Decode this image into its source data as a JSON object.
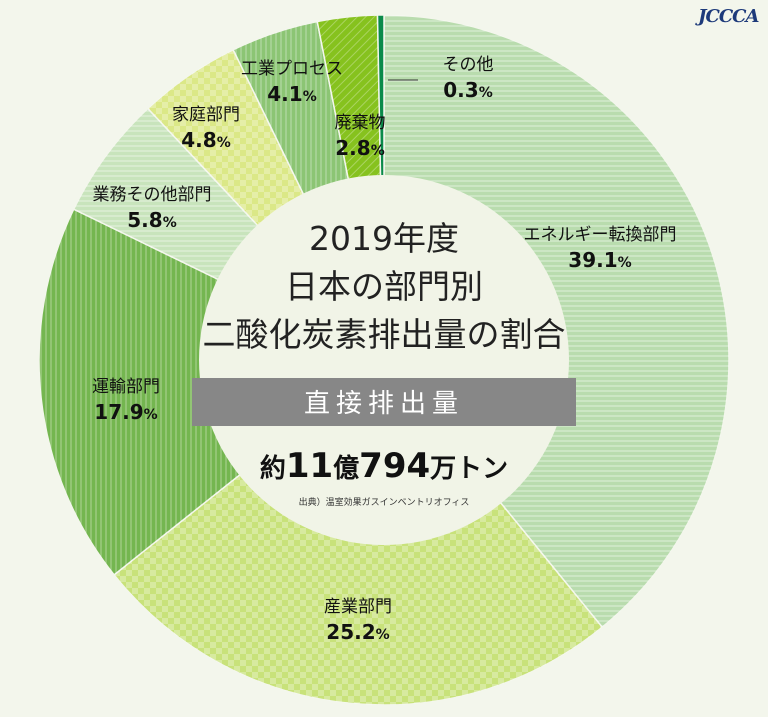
{
  "logo": {
    "text": "JCCCA"
  },
  "center": {
    "title_lines": [
      "2019年度",
      "日本の部門別",
      "二酸化炭素排出量の割合"
    ],
    "subtitle": "直接排出量",
    "total_prefix": "約",
    "total_n1": "11",
    "total_u1": "億",
    "total_n2": "794",
    "total_u2": "万トン",
    "source": "出典）温室効果ガスインベントリオフィス"
  },
  "chart_data": {
    "type": "pie",
    "title": "2019年度 日本の部門別 二酸化炭素排出量の割合",
    "subtitle": "直接排出量",
    "total": "約11億794万トン",
    "source": "出典）温室効果ガスインベントリオフィス",
    "unit": "%",
    "slices": [
      {
        "name": "エネルギー転換部門",
        "value": 39.1,
        "color": "#b9dcae"
      },
      {
        "name": "産業部門",
        "value": 25.2,
        "color": "#c8e27a"
      },
      {
        "name": "運輸部門",
        "value": 17.9,
        "color": "#74b650"
      },
      {
        "name": "業務その他部門",
        "value": 5.8,
        "color": "#c8e4bc"
      },
      {
        "name": "家庭部門",
        "value": 4.8,
        "color": "#dbe887"
      },
      {
        "name": "工業プロセス",
        "value": 4.1,
        "color": "#8cc574"
      },
      {
        "name": "廃棄物",
        "value": 2.8,
        "color": "#86c21e"
      },
      {
        "name": "その他",
        "value": 0.3,
        "color": "#0a8a4a"
      }
    ]
  }
}
